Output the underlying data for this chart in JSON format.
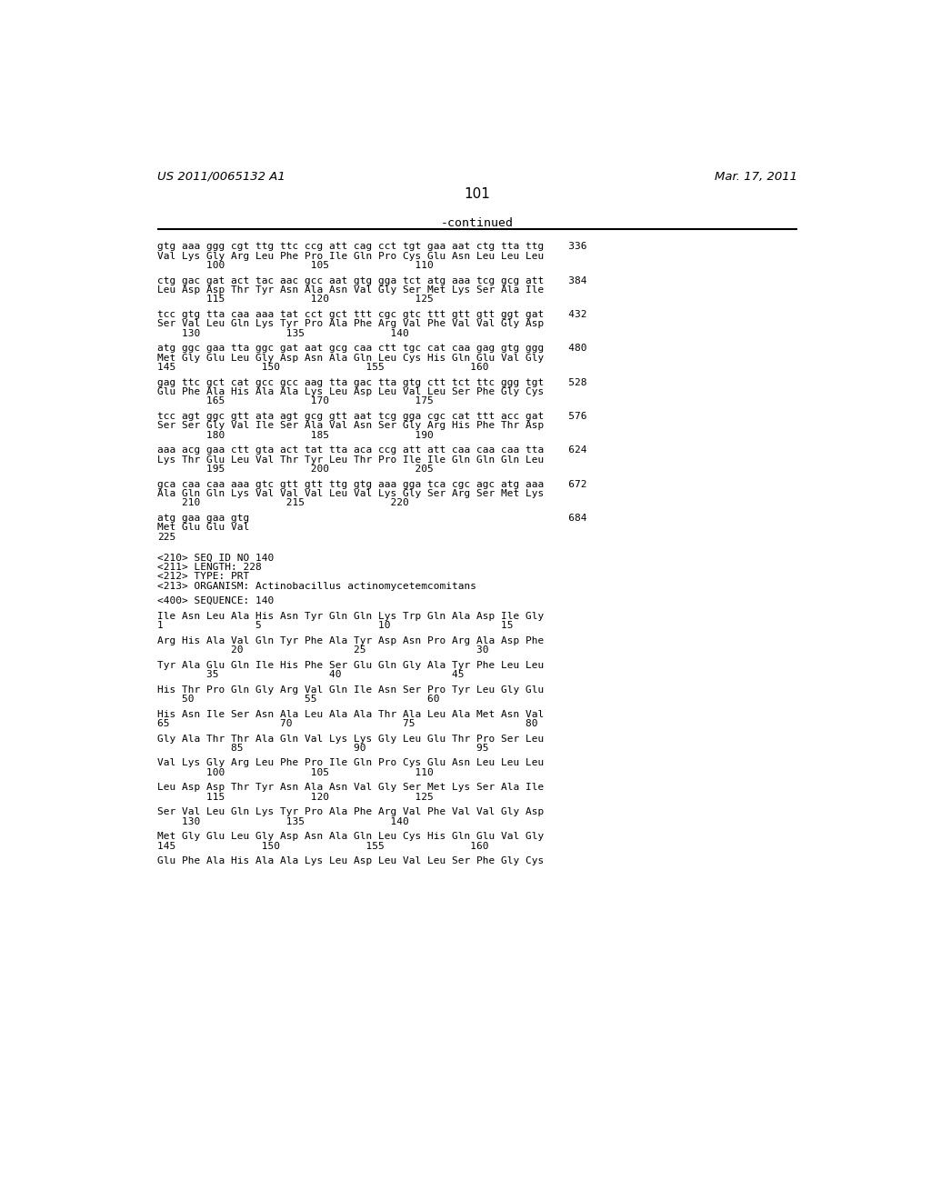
{
  "header_left": "US 2011/0065132 A1",
  "header_right": "Mar. 17, 2011",
  "page_number": "101",
  "continued_label": "-continued",
  "background_color": "#ffffff",
  "text_color": "#000000",
  "content_lines": [
    {
      "text": "gtg aaa ggg cgt ttg ttc ccg att cag cct tgt gaa aat ctg tta ttg    336",
      "type": "seq"
    },
    {
      "text": "Val Lys Gly Arg Leu Phe Pro Ile Gln Pro Cys Glu Asn Leu Leu Leu",
      "type": "aa"
    },
    {
      "text": "        100              105              110",
      "type": "num"
    },
    {
      "text": "",
      "type": "blank"
    },
    {
      "text": "ctg gac gat act tac aac gcc aat gtg gga tct atg aaa tcg gcg att    384",
      "type": "seq"
    },
    {
      "text": "Leu Asp Asp Thr Tyr Asn Ala Asn Val Gly Ser Met Lys Ser Ala Ile",
      "type": "aa"
    },
    {
      "text": "        115              120              125",
      "type": "num"
    },
    {
      "text": "",
      "type": "blank"
    },
    {
      "text": "tcc gtg tta caa aaa tat cct gct ttt cgc gtc ttt gtt gtt ggt gat    432",
      "type": "seq"
    },
    {
      "text": "Ser Val Leu Gln Lys Tyr Pro Ala Phe Arg Val Phe Val Val Gly Asp",
      "type": "aa"
    },
    {
      "text": "    130              135              140",
      "type": "num"
    },
    {
      "text": "",
      "type": "blank"
    },
    {
      "text": "atg ggc gaa tta ggc gat aat gcg caa ctt tgc cat caa gag gtg ggg    480",
      "type": "seq"
    },
    {
      "text": "Met Gly Glu Leu Gly Asp Asn Ala Gln Leu Cys His Gln Glu Val Gly",
      "type": "aa"
    },
    {
      "text": "145              150              155              160",
      "type": "num"
    },
    {
      "text": "",
      "type": "blank"
    },
    {
      "text": "gag ttc gct cat gcc gcc aag tta gac tta gtg ctt tct ttc ggg tgt    528",
      "type": "seq"
    },
    {
      "text": "Glu Phe Ala His Ala Ala Lys Leu Asp Leu Val Leu Ser Phe Gly Cys",
      "type": "aa"
    },
    {
      "text": "        165              170              175",
      "type": "num"
    },
    {
      "text": "",
      "type": "blank"
    },
    {
      "text": "tcc agt ggc gtt ata agt gcg gtt aat tcg gga cgc cat ttt acc gat    576",
      "type": "seq"
    },
    {
      "text": "Ser Ser Gly Val Ile Ser Ala Val Asn Ser Gly Arg His Phe Thr Asp",
      "type": "aa"
    },
    {
      "text": "        180              185              190",
      "type": "num"
    },
    {
      "text": "",
      "type": "blank"
    },
    {
      "text": "aaa acg gaa ctt gta act tat tta aca ccg att att caa caa caa tta    624",
      "type": "seq"
    },
    {
      "text": "Lys Thr Glu Leu Val Thr Tyr Leu Thr Pro Ile Ile Gln Gln Gln Leu",
      "type": "aa"
    },
    {
      "text": "        195              200              205",
      "type": "num"
    },
    {
      "text": "",
      "type": "blank"
    },
    {
      "text": "gca caa caa aaa gtc gtt gtt ttg gtg aaa gga tca cgc agc atg aaa    672",
      "type": "seq"
    },
    {
      "text": "Ala Gln Gln Lys Val Val Val Leu Val Lys Gly Ser Arg Ser Met Lys",
      "type": "aa"
    },
    {
      "text": "    210              215              220",
      "type": "num"
    },
    {
      "text": "",
      "type": "blank"
    },
    {
      "text": "atg gaa gaa gtg                                                    684",
      "type": "seq"
    },
    {
      "text": "Met Glu Glu Val",
      "type": "aa"
    },
    {
      "text": "225",
      "type": "num"
    },
    {
      "text": "",
      "type": "blank"
    },
    {
      "text": "",
      "type": "blank"
    },
    {
      "text": "<210> SEQ ID NO 140",
      "type": "meta"
    },
    {
      "text": "<211> LENGTH: 228",
      "type": "meta"
    },
    {
      "text": "<212> TYPE: PRT",
      "type": "meta"
    },
    {
      "text": "<213> ORGANISM: Actinobacillus actinomycetemcomitans",
      "type": "meta"
    },
    {
      "text": "",
      "type": "blank"
    },
    {
      "text": "<400> SEQUENCE: 140",
      "type": "meta"
    },
    {
      "text": "",
      "type": "blank"
    },
    {
      "text": "Ile Asn Leu Ala His Asn Tyr Gln Gln Lys Trp Gln Ala Asp Ile Gly",
      "type": "aa"
    },
    {
      "text": "1               5                   10                  15",
      "type": "num"
    },
    {
      "text": "",
      "type": "blank"
    },
    {
      "text": "Arg His Ala Val Gln Tyr Phe Ala Tyr Asp Asn Pro Arg Ala Asp Phe",
      "type": "aa"
    },
    {
      "text": "            20                  25                  30",
      "type": "num"
    },
    {
      "text": "",
      "type": "blank"
    },
    {
      "text": "Tyr Ala Glu Gln Ile His Phe Ser Glu Gln Gly Ala Tyr Phe Leu Leu",
      "type": "aa"
    },
    {
      "text": "        35                  40                  45",
      "type": "num"
    },
    {
      "text": "",
      "type": "blank"
    },
    {
      "text": "His Thr Pro Gln Gly Arg Val Gln Ile Asn Ser Pro Tyr Leu Gly Glu",
      "type": "aa"
    },
    {
      "text": "    50                  55                  60",
      "type": "num"
    },
    {
      "text": "",
      "type": "blank"
    },
    {
      "text": "His Asn Ile Ser Asn Ala Leu Ala Ala Thr Ala Leu Ala Met Asn Val",
      "type": "aa"
    },
    {
      "text": "65                  70                  75                  80",
      "type": "num"
    },
    {
      "text": "",
      "type": "blank"
    },
    {
      "text": "Gly Ala Thr Thr Ala Gln Val Lys Lys Gly Leu Glu Thr Pro Ser Leu",
      "type": "aa"
    },
    {
      "text": "            85                  90                  95",
      "type": "num"
    },
    {
      "text": "",
      "type": "blank"
    },
    {
      "text": "Val Lys Gly Arg Leu Phe Pro Ile Gln Pro Cys Glu Asn Leu Leu Leu",
      "type": "aa"
    },
    {
      "text": "        100              105              110",
      "type": "num"
    },
    {
      "text": "",
      "type": "blank"
    },
    {
      "text": "Leu Asp Asp Thr Tyr Asn Ala Asn Val Gly Ser Met Lys Ser Ala Ile",
      "type": "aa"
    },
    {
      "text": "        115              120              125",
      "type": "num"
    },
    {
      "text": "",
      "type": "blank"
    },
    {
      "text": "Ser Val Leu Gln Lys Tyr Pro Ala Phe Arg Val Phe Val Val Gly Asp",
      "type": "aa"
    },
    {
      "text": "    130              135              140",
      "type": "num"
    },
    {
      "text": "",
      "type": "blank"
    },
    {
      "text": "Met Gly Glu Leu Gly Asp Asn Ala Gln Leu Cys His Gln Glu Val Gly",
      "type": "aa"
    },
    {
      "text": "145              150              155              160",
      "type": "num"
    },
    {
      "text": "",
      "type": "blank"
    },
    {
      "text": "Glu Phe Ala His Ala Ala Lys Leu Asp Leu Val Leu Ser Phe Gly Cys",
      "type": "aa"
    }
  ]
}
